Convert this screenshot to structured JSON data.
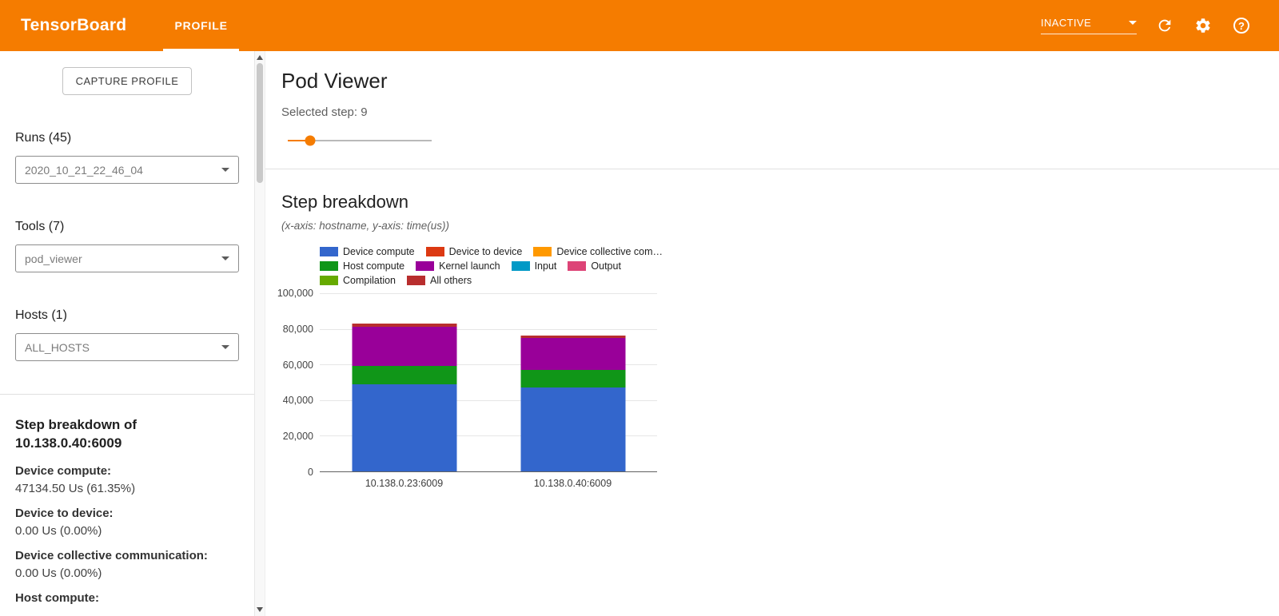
{
  "topbar": {
    "title": "TensorBoard",
    "tab": "PROFILE",
    "status": "INACTIVE",
    "help_glyph": "?",
    "accent_color": "#f57c00"
  },
  "sidebar": {
    "capture_button": "CAPTURE PROFILE",
    "runs_label": "Runs (45)",
    "runs_value": "2020_10_21_22_46_04",
    "tools_label": "Tools (7)",
    "tools_value": "pod_viewer",
    "hosts_label": "Hosts (1)",
    "hosts_value": "ALL_HOSTS",
    "breakdown_title_line1": "Step breakdown of",
    "breakdown_title_line2": "10.138.0.40:6009",
    "stats": [
      {
        "label": "Device compute:",
        "value": "47134.50 Us (61.35%)"
      },
      {
        "label": "Device to device:",
        "value": "0.00 Us (0.00%)"
      },
      {
        "label": "Device collective communication:",
        "value": "0.00 Us (0.00%)"
      },
      {
        "label": "Host compute:",
        "value": ""
      }
    ]
  },
  "main": {
    "title": "Pod Viewer",
    "selected_step_label": "Selected step: 9",
    "selected_step": 9,
    "slider_percent": 15.5,
    "section_title": "Step breakdown",
    "section_subtitle": "(x-axis: hostname, y-axis: time(us))"
  },
  "chart_data": {
    "type": "bar",
    "stacked": true,
    "xlabel": "hostname",
    "ylabel": "time(us)",
    "ylim": [
      0,
      100000
    ],
    "ytick_labels": [
      "0",
      "20,000",
      "40,000",
      "60,000",
      "80,000",
      "100,000"
    ],
    "grid": true,
    "legend_position": "top",
    "categories": [
      "10.138.0.23:6009",
      "10.138.0.40:6009"
    ],
    "series": [
      {
        "name": "Device compute",
        "color": "#3366cc",
        "values": [
          49100,
          47134.5
        ]
      },
      {
        "name": "Device to device",
        "color": "#dc3912",
        "values": [
          0,
          0
        ]
      },
      {
        "name": "Device collective com…",
        "color": "#ff9900",
        "values": [
          0,
          0
        ]
      },
      {
        "name": "Host compute",
        "color": "#109618",
        "values": [
          10300,
          9800
        ]
      },
      {
        "name": "Kernel launch",
        "color": "#990099",
        "values": [
          21900,
          18100
        ]
      },
      {
        "name": "Input",
        "color": "#0099c6",
        "values": [
          0,
          0
        ]
      },
      {
        "name": "Output",
        "color": "#dd4477",
        "values": [
          0,
          0
        ]
      },
      {
        "name": "Compilation",
        "color": "#66aa00",
        "values": [
          0,
          0
        ]
      },
      {
        "name": "All others",
        "color": "#b82e2e",
        "values": [
          1800,
          1300
        ]
      }
    ],
    "legend_rows": [
      [
        0,
        1,
        2
      ],
      [
        3,
        4,
        5,
        6
      ],
      [
        7,
        8
      ]
    ]
  }
}
